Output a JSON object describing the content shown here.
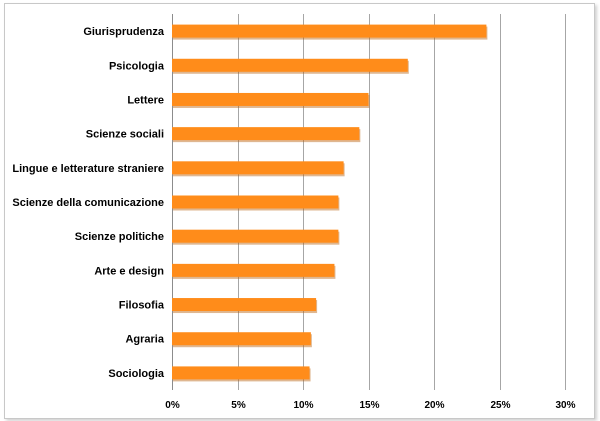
{
  "chart_data": {
    "type": "bar",
    "orientation": "horizontal",
    "title": "",
    "xlabel": "",
    "ylabel": "",
    "categories": [
      "Giurisprudenza",
      "Psicologia",
      "Lettere",
      "Scienze sociali",
      "Lingue e letterature straniere",
      "Scienze della comunicazione",
      "Scienze politiche",
      "Arte e design",
      "Filosofia",
      "Agraria",
      "Sociologia"
    ],
    "values": [
      24.0,
      18.0,
      15.0,
      14.3,
      13.1,
      12.7,
      12.7,
      12.4,
      11.0,
      10.6,
      10.5
    ],
    "unit": "%",
    "xlim": [
      0,
      30
    ],
    "xticks": [
      0,
      5,
      10,
      15,
      20,
      25,
      30
    ],
    "xtick_labels": [
      "0%",
      "5%",
      "10%",
      "15%",
      "20%",
      "25%",
      "30%"
    ],
    "grid": "vertical",
    "legend": "none",
    "bar_color": "#ff8c1a",
    "bar_shadow_color": "#b85f0a",
    "grid_color": "#a6a6a6"
  }
}
